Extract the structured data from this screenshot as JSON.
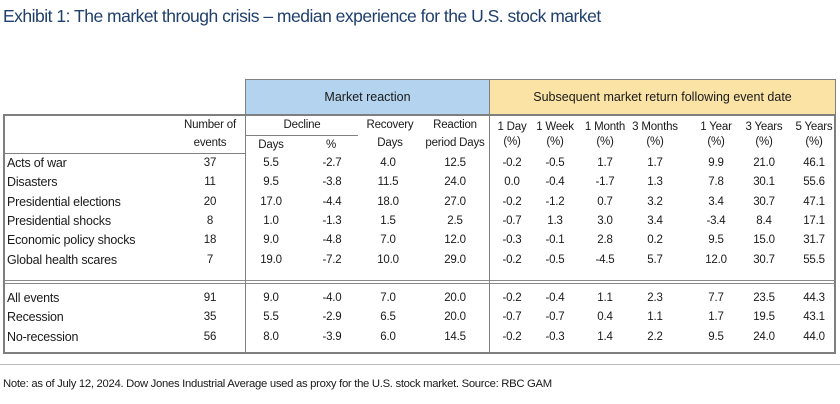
{
  "title": "Exhibit 1: The market through crisis – median experience for the U.S. stock market",
  "groups": {
    "market_reaction": "Market reaction",
    "subsequent_return": "Subsequent market return following event date"
  },
  "headers": {
    "events": [
      "Number of",
      "events"
    ],
    "decline": "Decline",
    "decline_days": "Days",
    "decline_pct": "%",
    "recovery": [
      "Recovery",
      "Days"
    ],
    "reaction": [
      "Reaction",
      "period Days"
    ],
    "returns": [
      [
        "1 Day",
        "(%)"
      ],
      [
        "1 Week",
        "(%)"
      ],
      [
        "1 Month",
        "(%)"
      ],
      [
        "3 Months",
        "(%)"
      ],
      [
        "1 Year",
        "(%)"
      ],
      [
        "3 Years",
        "(%)"
      ],
      [
        "5 Years",
        "(%)"
      ]
    ]
  },
  "rows": [
    {
      "label": "Acts of war",
      "values": [
        "37",
        "5.5",
        "-2.7",
        "4.0",
        "12.5",
        "-0.2",
        "-0.5",
        "1.7",
        "1.7",
        "9.9",
        "21.0",
        "46.1"
      ]
    },
    {
      "label": "Disasters",
      "values": [
        "11",
        "9.5",
        "-3.8",
        "11.5",
        "24.0",
        "0.0",
        "-0.4",
        "-1.7",
        "1.3",
        "7.8",
        "30.1",
        "55.6"
      ]
    },
    {
      "label": "Presidential elections",
      "values": [
        "20",
        "17.0",
        "-4.4",
        "18.0",
        "27.0",
        "-0.2",
        "-1.2",
        "0.7",
        "3.2",
        "3.4",
        "30.7",
        "47.1"
      ]
    },
    {
      "label": "Presidential shocks",
      "values": [
        "8",
        "1.0",
        "-1.3",
        "1.5",
        "2.5",
        "-0.7",
        "1.3",
        "3.0",
        "3.4",
        "-3.4",
        "8.4",
        "17.1"
      ]
    },
    {
      "label": "Economic policy shocks",
      "values": [
        "18",
        "9.0",
        "-4.8",
        "7.0",
        "12.0",
        "-0.3",
        "-0.1",
        "2.8",
        "0.2",
        "9.5",
        "15.0",
        "31.7"
      ]
    },
    {
      "label": "Global health scares",
      "values": [
        "7",
        "19.0",
        "-7.2",
        "10.0",
        "29.0",
        "-0.2",
        "-0.5",
        "-4.5",
        "5.7",
        "12.0",
        "30.7",
        "55.5"
      ]
    }
  ],
  "summary_rows": [
    {
      "label": "All events",
      "values": [
        "91",
        "9.0",
        "-4.0",
        "7.0",
        "20.0",
        "-0.2",
        "-0.4",
        "1.1",
        "2.3",
        "7.7",
        "23.5",
        "44.3"
      ]
    },
    {
      "label": "Recession",
      "values": [
        "35",
        "5.5",
        "-2.9",
        "6.5",
        "20.0",
        "-0.7",
        "-0.7",
        "0.4",
        "1.1",
        "1.7",
        "19.5",
        "43.1"
      ]
    },
    {
      "label": "No-recession",
      "values": [
        "56",
        "8.0",
        "-3.9",
        "6.0",
        "14.5",
        "-0.2",
        "-0.3",
        "1.4",
        "2.2",
        "9.5",
        "24.0",
        "44.0"
      ]
    }
  ],
  "note": "Note: as of July 12, 2024. Dow Jones Industrial Average used as proxy for the U.S. stock market. Source: RBC GAM"
}
